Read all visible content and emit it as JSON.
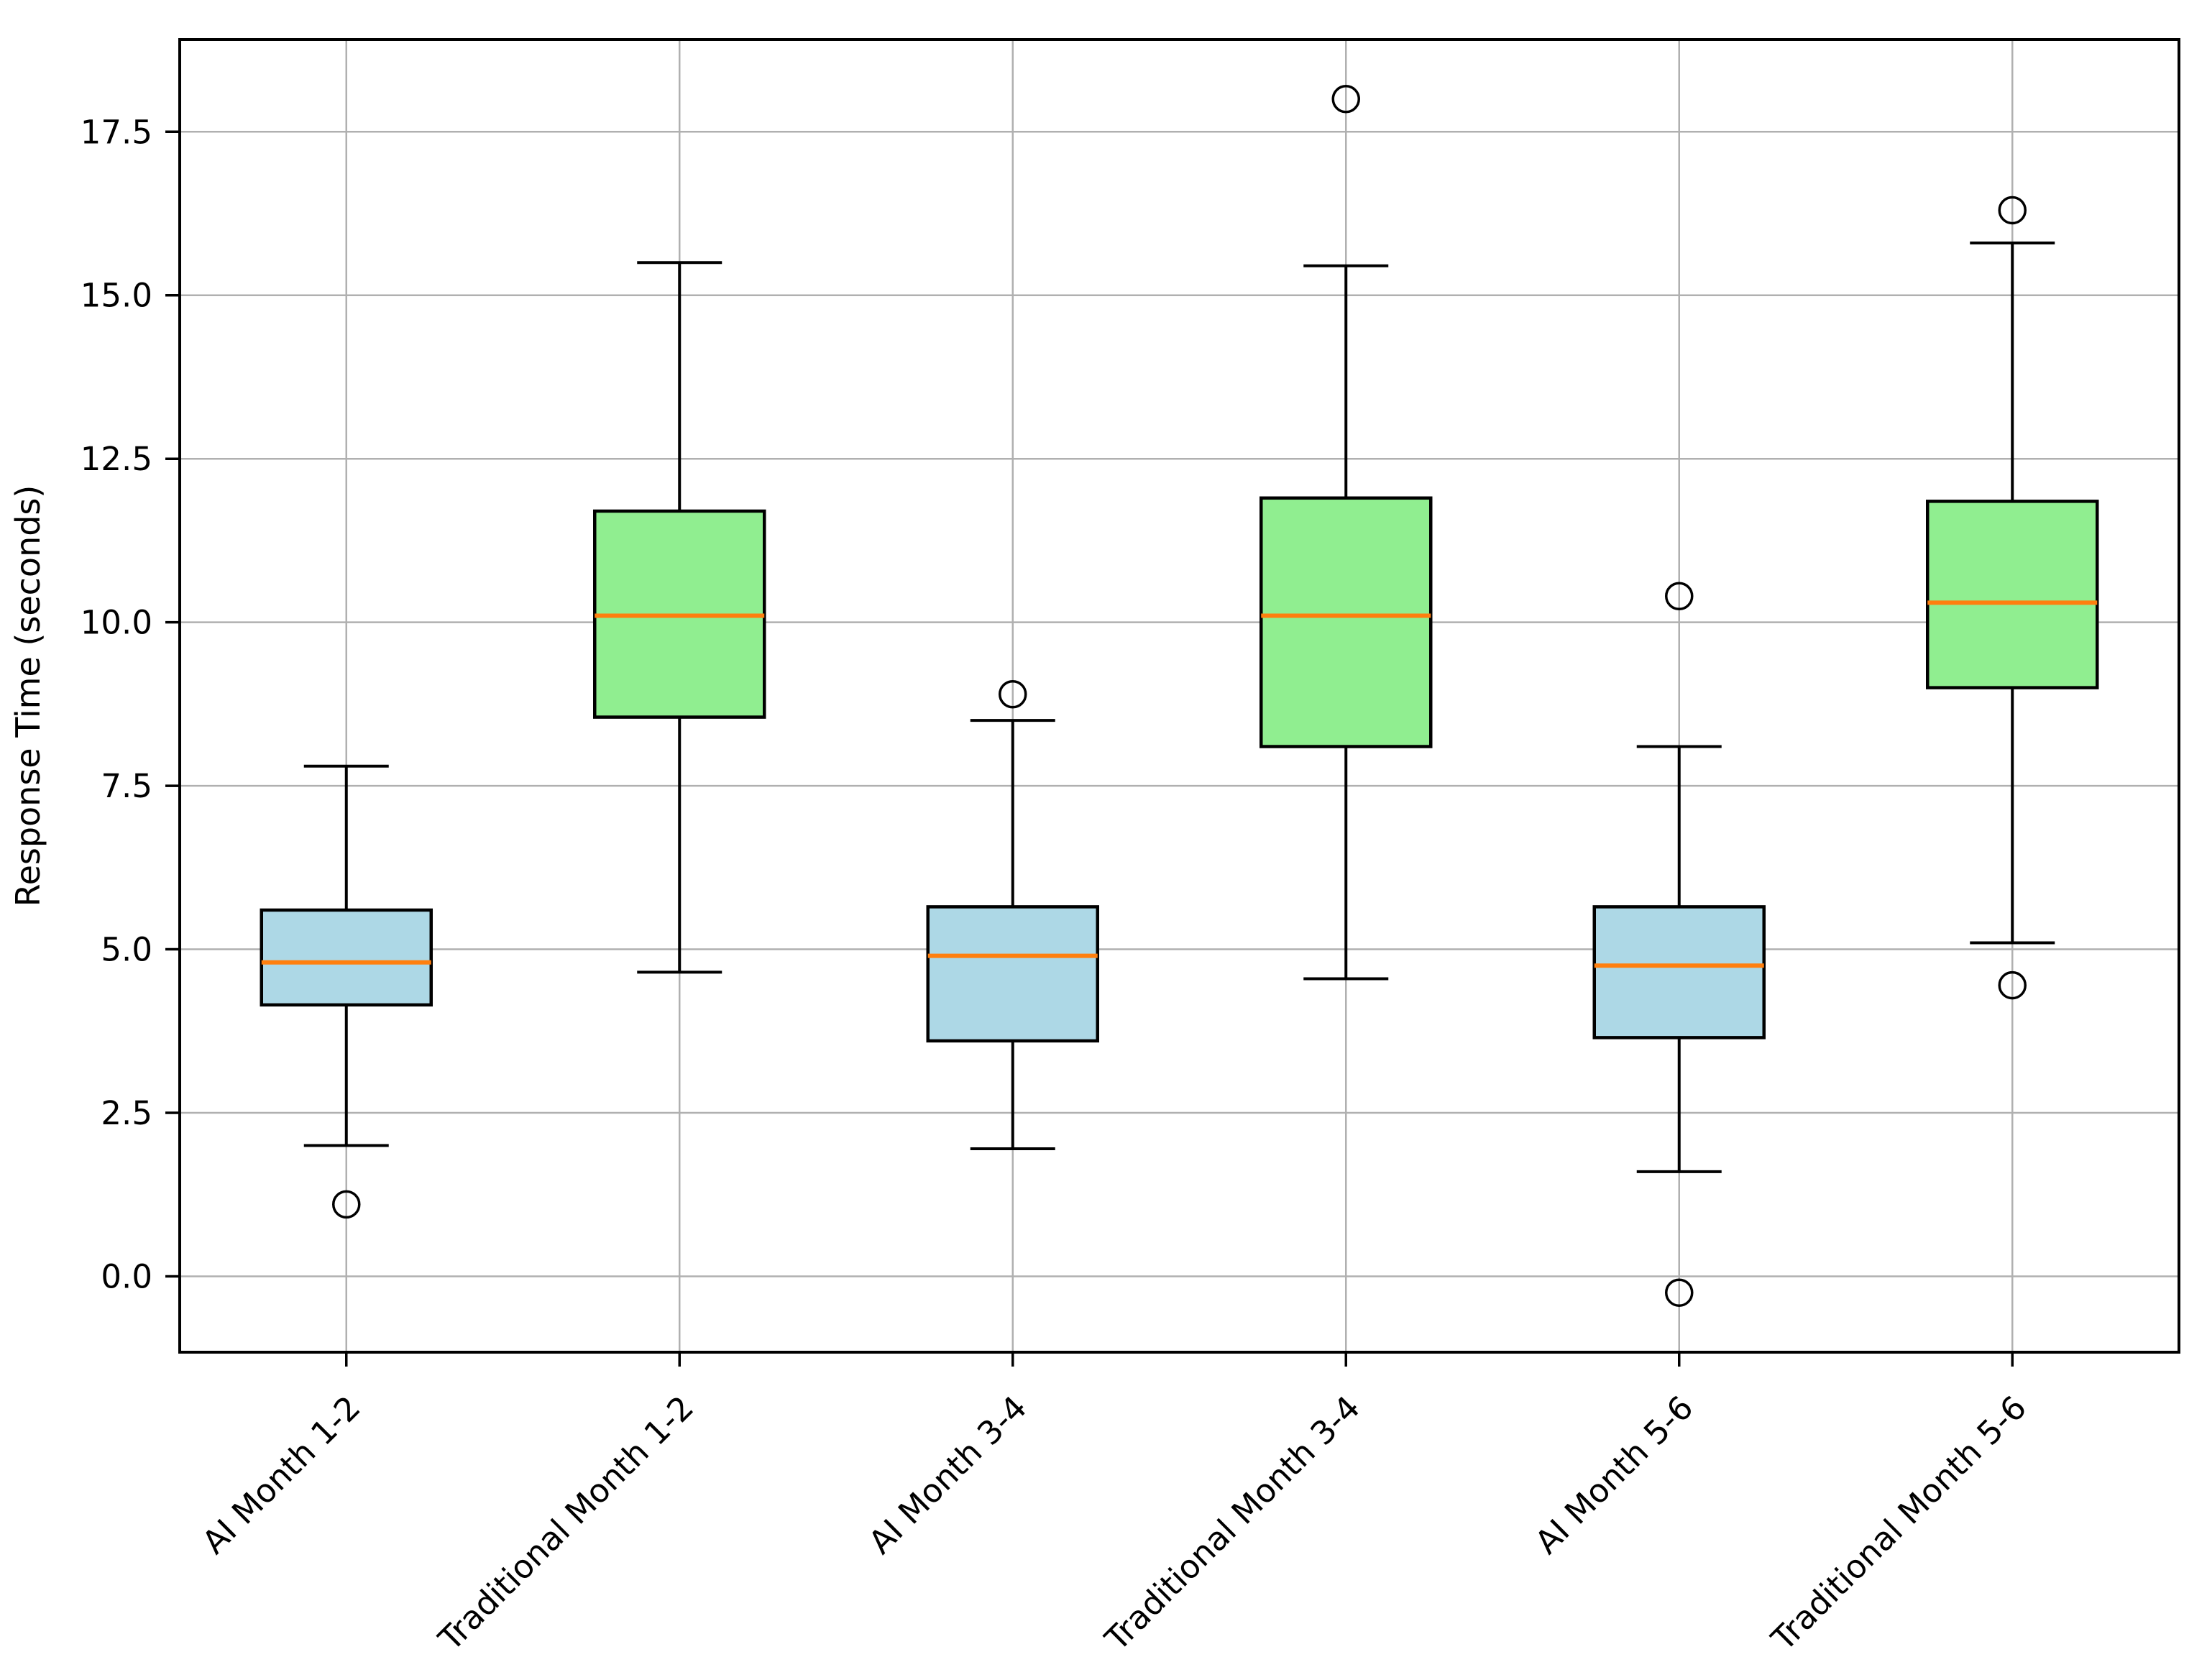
{
  "figure": {
    "background": "#FFFFFF"
  },
  "chart_data": {
    "type": "boxplot",
    "title": "",
    "xlabel": "",
    "ylabel": "Response Time (seconds)",
    "categories": [
      "AI Month 1-2",
      "Traditional Month 1-2",
      "AI Month 3-4",
      "Traditional Month 3-4",
      "AI Month 5-6",
      "Traditional Month 5-6"
    ],
    "boxes": [
      {
        "label": "AI Month 1-2",
        "group": "AI",
        "whislo": 2.0,
        "q1": 4.15,
        "med": 4.8,
        "q3": 5.6,
        "whishi": 7.8,
        "fliers": [
          1.1
        ],
        "fill": "#ADD8E6"
      },
      {
        "label": "Traditional Month 1-2",
        "group": "Traditional",
        "whislo": 4.65,
        "q1": 8.55,
        "med": 10.1,
        "q3": 11.7,
        "whishi": 15.5,
        "fliers": [],
        "fill": "#90EE90"
      },
      {
        "label": "AI Month 3-4",
        "group": "AI",
        "whislo": 1.95,
        "q1": 3.6,
        "med": 4.9,
        "q3": 5.65,
        "whishi": 8.5,
        "fliers": [
          8.9
        ],
        "fill": "#ADD8E6"
      },
      {
        "label": "Traditional Month 3-4",
        "group": "Traditional",
        "whislo": 4.55,
        "q1": 8.1,
        "med": 10.1,
        "q3": 11.9,
        "whishi": 15.45,
        "fliers": [
          18.0
        ],
        "fill": "#90EE90"
      },
      {
        "label": "AI Month 5-6",
        "group": "AI",
        "whislo": 1.6,
        "q1": 3.65,
        "med": 4.75,
        "q3": 5.65,
        "whishi": 8.1,
        "fliers": [
          10.4,
          -0.25
        ],
        "fill": "#ADD8E6"
      },
      {
        "label": "Traditional Month 5-6",
        "group": "Traditional",
        "whislo": 5.1,
        "q1": 9.0,
        "med": 10.3,
        "q3": 11.85,
        "whishi": 15.8,
        "fliers": [
          16.3,
          4.45
        ],
        "fill": "#90EE90"
      }
    ],
    "yticks": [
      0.0,
      2.5,
      5.0,
      7.5,
      10.0,
      12.5,
      15.0,
      17.5
    ],
    "ytick_labels": [
      "0.0",
      "2.5",
      "5.0",
      "7.5",
      "10.0",
      "12.5",
      "15.0",
      "17.5"
    ],
    "ylim": [
      -1.16,
      18.91
    ],
    "grid": true,
    "legend_position": "none",
    "styles": {
      "ai_fill_color": "#ADD8E6",
      "traditional_fill_color": "#90EE90",
      "median_color": "#FF7F0E",
      "box_edge_color": "#000000",
      "whisker_color": "#000000",
      "flier_edge_color": "#000000",
      "grid_color": "#B0B0B0",
      "spine_color": "#000000",
      "tick_label_rotation_deg": 45
    }
  }
}
